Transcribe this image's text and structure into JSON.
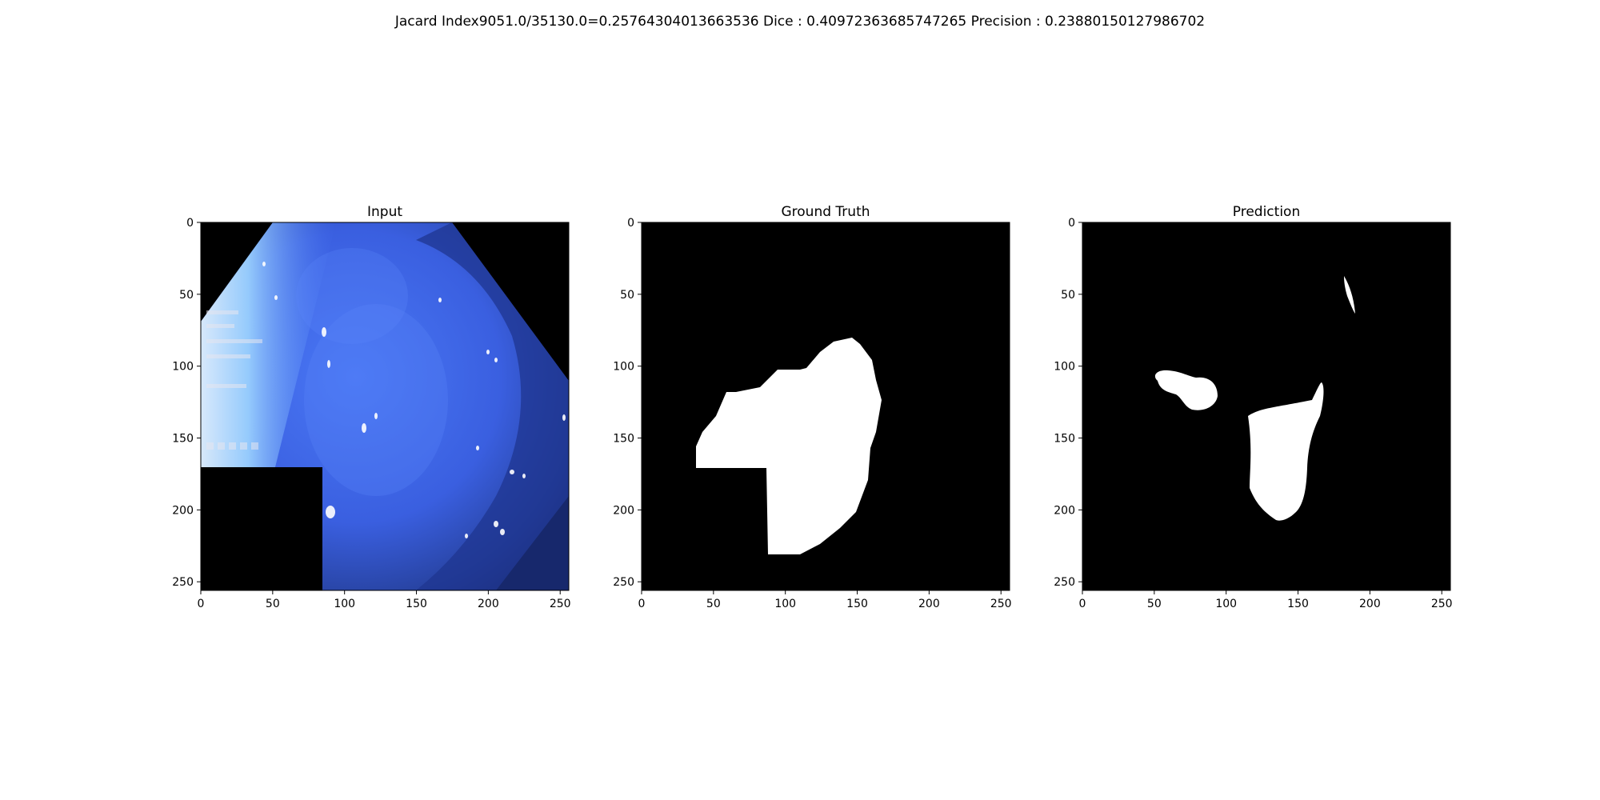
{
  "figure": {
    "suptitle": "Jacard Index9051.0/35130.0=0.25764304013663536 Dice : 0.40972363685747265 Precision : 0.23880150127986702"
  },
  "panels": [
    {
      "title": "Input"
    },
    {
      "title": "Ground Truth"
    },
    {
      "title": "Prediction"
    }
  ],
  "axes": {
    "x_ticks": [
      "0",
      "50",
      "100",
      "150",
      "200",
      "250"
    ],
    "y_ticks": [
      "0",
      "50",
      "100",
      "150",
      "200",
      "250"
    ],
    "range": [
      0,
      256
    ]
  },
  "colors": {
    "background": "#000000",
    "mask": "#ffffff",
    "tissue": "#3d63e6",
    "tissue_light": "#bfe6ff",
    "tissue_dark": "#1d2f7a"
  }
}
